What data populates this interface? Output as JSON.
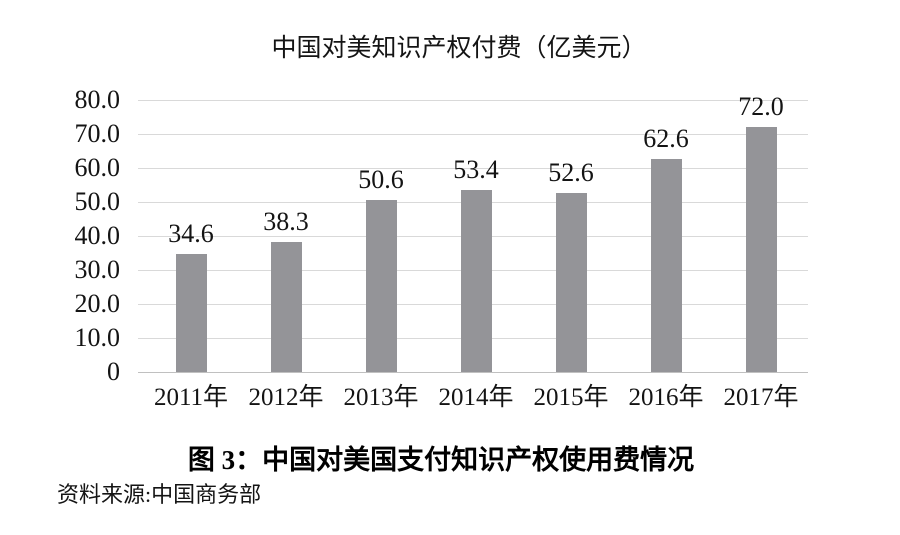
{
  "caption": "图 3：中国对美国支付知识产权使用费情况",
  "source": "资料来源:中国商务部",
  "colors": {
    "bar": "#949498",
    "gridline": "#d9d9d9",
    "axis_line": "#c0c0c0",
    "text": "#141414"
  },
  "chart_data": {
    "type": "bar",
    "title": "中国对美知识产权付费（亿美元）",
    "categories": [
      "2011年",
      "2012年",
      "2013年",
      "2014年",
      "2015年",
      "2016年",
      "2017年"
    ],
    "values": [
      34.6,
      38.3,
      50.6,
      53.4,
      52.6,
      62.6,
      72.0
    ],
    "value_labels": [
      "34.6",
      "38.3",
      "50.6",
      "53.4",
      "52.6",
      "62.6",
      "72.0"
    ],
    "xlabel": "",
    "ylabel": "",
    "ylim": [
      0,
      80
    ],
    "ytick_interval": 10,
    "ytick_labels": [
      "0",
      "10.0",
      "20.0",
      "30.0",
      "40.0",
      "50.0",
      "60.0",
      "70.0",
      "80.0"
    ],
    "grid": true,
    "legend": false
  }
}
